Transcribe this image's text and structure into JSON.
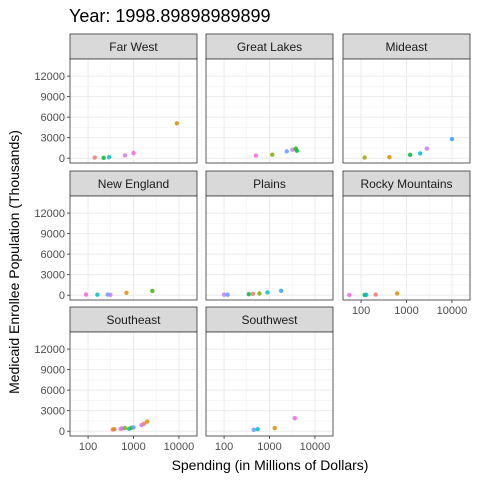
{
  "chart_data": {
    "type": "scatter",
    "title": "Year: 1998.89898989899",
    "xlabel": "Spending (in Millions of Dollars)",
    "ylabel": "Medicaid Enrollee Population (Thousands)",
    "x_scale": "log10",
    "xlim": [
      40,
      25000
    ],
    "ylim": [
      -700,
      14500
    ],
    "x_ticks": [
      100,
      1000,
      10000
    ],
    "x_tick_labels": [
      "100",
      "1000",
      "10000"
    ],
    "y_ticks": [
      0,
      3000,
      6000,
      9000,
      12000
    ],
    "y_tick_labels": [
      "0",
      "3000",
      "6000",
      "9000",
      "12000"
    ],
    "grid": true,
    "facets": [
      {
        "name": "Far West",
        "points": [
          {
            "x": 140,
            "y": 100,
            "color": "#F8766D"
          },
          {
            "x": 220,
            "y": 60,
            "color": "#00BA38"
          },
          {
            "x": 290,
            "y": 150,
            "color": "#00BFC4"
          },
          {
            "x": 650,
            "y": 400,
            "color": "#C77CFF"
          },
          {
            "x": 1000,
            "y": 750,
            "color": "#F564E3"
          },
          {
            "x": 9000,
            "y": 5100,
            "color": "#D89000"
          }
        ]
      },
      {
        "name": "Great Lakes",
        "points": [
          {
            "x": 500,
            "y": 380,
            "color": "#F564E3"
          },
          {
            "x": 1150,
            "y": 520,
            "color": "#7CAE00"
          },
          {
            "x": 2400,
            "y": 1000,
            "color": "#619CFF"
          },
          {
            "x": 3200,
            "y": 1250,
            "color": "#C77CFF"
          },
          {
            "x": 3800,
            "y": 1400,
            "color": "#39B600"
          },
          {
            "x": 4000,
            "y": 1100,
            "color": "#00BA38"
          }
        ]
      },
      {
        "name": "Mideast",
        "points": [
          {
            "x": 120,
            "y": 100,
            "color": "#A3A500"
          },
          {
            "x": 420,
            "y": 150,
            "color": "#D89000"
          },
          {
            "x": 1200,
            "y": 500,
            "color": "#00BA38"
          },
          {
            "x": 2000,
            "y": 700,
            "color": "#00BFC4"
          },
          {
            "x": 2800,
            "y": 1400,
            "color": "#C77CFF"
          },
          {
            "x": 10000,
            "y": 2800,
            "color": "#35A2FF"
          }
        ]
      },
      {
        "name": "New England",
        "points": [
          {
            "x": 90,
            "y": 100,
            "color": "#F564E3"
          },
          {
            "x": 160,
            "y": 80,
            "color": "#00BFC4"
          },
          {
            "x": 270,
            "y": 90,
            "color": "#619CFF"
          },
          {
            "x": 310,
            "y": 60,
            "color": "#C77CFF"
          },
          {
            "x": 700,
            "y": 350,
            "color": "#D89000"
          },
          {
            "x": 2600,
            "y": 620,
            "color": "#39B600"
          }
        ]
      },
      {
        "name": "Plains",
        "points": [
          {
            "x": 100,
            "y": 80,
            "color": "#C77CFF"
          },
          {
            "x": 120,
            "y": 70,
            "color": "#619CFF"
          },
          {
            "x": 350,
            "y": 150,
            "color": "#00BA38"
          },
          {
            "x": 430,
            "y": 200,
            "color": "#F8766D"
          },
          {
            "x": 600,
            "y": 250,
            "color": "#7CAE00"
          },
          {
            "x": 900,
            "y": 400,
            "color": "#00BFC4"
          },
          {
            "x": 1800,
            "y": 650,
            "color": "#35A2FF"
          }
        ]
      },
      {
        "name": "Rocky Mountains",
        "points": [
          {
            "x": 55,
            "y": 30,
            "color": "#F564E3"
          },
          {
            "x": 120,
            "y": 40,
            "color": "#00BA38"
          },
          {
            "x": 130,
            "y": 50,
            "color": "#00BFC4"
          },
          {
            "x": 210,
            "y": 90,
            "color": "#F8766D"
          },
          {
            "x": 620,
            "y": 250,
            "color": "#D89000"
          }
        ]
      },
      {
        "name": "Southeast",
        "points": [
          {
            "x": 350,
            "y": 250,
            "color": "#F8766D"
          },
          {
            "x": 380,
            "y": 300,
            "color": "#D89000"
          },
          {
            "x": 520,
            "y": 350,
            "color": "#F564E3"
          },
          {
            "x": 560,
            "y": 400,
            "color": "#C77CFF"
          },
          {
            "x": 650,
            "y": 450,
            "color": "#7CAE00"
          },
          {
            "x": 800,
            "y": 350,
            "color": "#00BFC4"
          },
          {
            "x": 900,
            "y": 500,
            "color": "#39B600"
          },
          {
            "x": 1000,
            "y": 550,
            "color": "#619CFF"
          },
          {
            "x": 1500,
            "y": 900,
            "color": "#C77CFF"
          },
          {
            "x": 1700,
            "y": 1100,
            "color": "#F8766D"
          },
          {
            "x": 2000,
            "y": 1400,
            "color": "#D89000"
          }
        ]
      },
      {
        "name": "Southwest",
        "points": [
          {
            "x": 450,
            "y": 200,
            "color": "#619CFF"
          },
          {
            "x": 550,
            "y": 300,
            "color": "#00BFC4"
          },
          {
            "x": 1300,
            "y": 450,
            "color": "#D89000"
          },
          {
            "x": 3600,
            "y": 1900,
            "color": "#F564E3"
          }
        ]
      }
    ]
  }
}
